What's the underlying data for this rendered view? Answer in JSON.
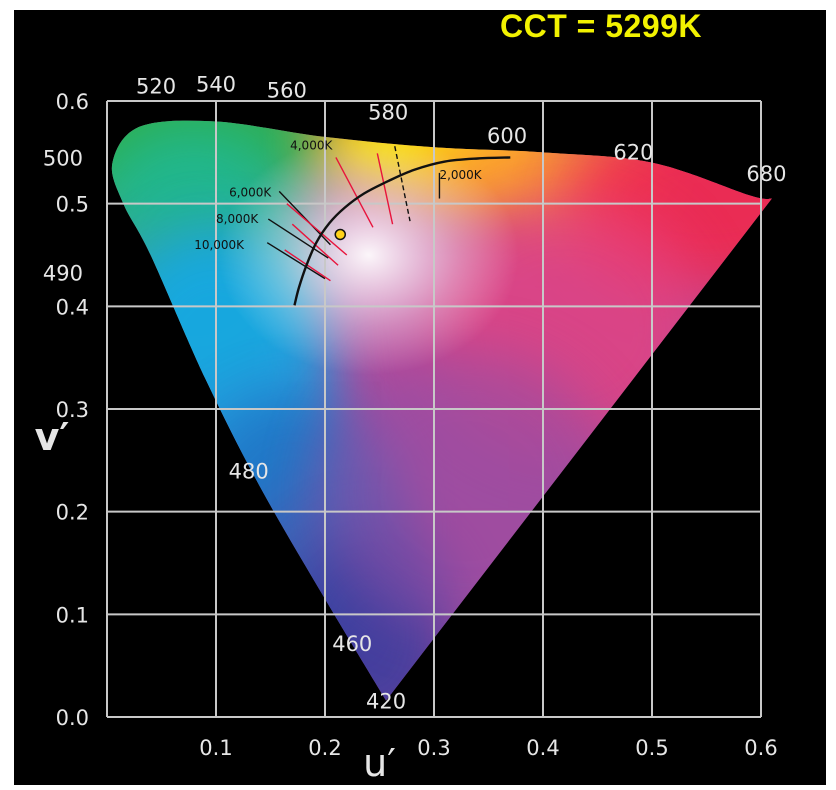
{
  "title": "CCT = 5299K",
  "colors": {
    "background": "#000000",
    "grid": "#c8c8c8",
    "title": "#f2f200",
    "axis_text": "#e6e6e6",
    "planckian_locus": "#111111",
    "marker": "#ffd21a"
  },
  "chart_data": {
    "type": "scatter",
    "title": "CCT = 5299K",
    "xlabel": "u′",
    "ylabel": "v′",
    "xlim": [
      0,
      0.6
    ],
    "ylim": [
      0,
      0.6
    ],
    "grid": true,
    "x_ticks": [
      {
        "v": 0.1,
        "label": "0.1"
      },
      {
        "v": 0.2,
        "label": "0.2"
      },
      {
        "v": 0.3,
        "label": "0.3"
      },
      {
        "v": 0.4,
        "label": "0.4"
      },
      {
        "v": 0.5,
        "label": "0.5"
      },
      {
        "v": 0.6,
        "label": "0.6"
      }
    ],
    "y_ticks": [
      {
        "v": 0.0,
        "label": "0.0"
      },
      {
        "v": 0.1,
        "label": "0.1"
      },
      {
        "v": 0.2,
        "label": "0.2"
      },
      {
        "v": 0.3,
        "label": "0.3"
      },
      {
        "v": 0.4,
        "label": "0.4"
      },
      {
        "v": 0.5,
        "label": "0.5"
      },
      {
        "v": 0.6,
        "label": "0.6"
      }
    ],
    "spectral_locus": [
      [
        0.256,
        0.016
      ],
      [
        0.2,
        0.115
      ],
      [
        0.14,
        0.225
      ],
      [
        0.09,
        0.33
      ],
      [
        0.04,
        0.45
      ],
      [
        0.015,
        0.5
      ],
      [
        0.005,
        0.54
      ],
      [
        0.03,
        0.575
      ],
      [
        0.1,
        0.58
      ],
      [
        0.2,
        0.565
      ],
      [
        0.3,
        0.555
      ],
      [
        0.4,
        0.55
      ],
      [
        0.5,
        0.54
      ],
      [
        0.59,
        0.508
      ],
      [
        0.61,
        0.505
      ]
    ],
    "wavelength_labels": [
      {
        "label": "420",
        "u": 0.256,
        "v": 0.016
      },
      {
        "label": "460",
        "u": 0.225,
        "v": 0.072
      },
      {
        "label": "480",
        "u": 0.13,
        "v": 0.24
      },
      {
        "label": "490",
        "u": 0.0,
        "v": 0.433
      },
      {
        "label": "500",
        "u": 0.0,
        "v": 0.545
      },
      {
        "label": "520",
        "u": 0.045,
        "v": 0.615
      },
      {
        "label": "540",
        "u": 0.1,
        "v": 0.617
      },
      {
        "label": "560",
        "u": 0.165,
        "v": 0.611
      },
      {
        "label": "580",
        "u": 0.258,
        "v": 0.59
      },
      {
        "label": "600",
        "u": 0.367,
        "v": 0.567
      },
      {
        "label": "620",
        "u": 0.483,
        "v": 0.551
      },
      {
        "label": "680",
        "u": 0.605,
        "v": 0.53
      }
    ],
    "planckian_locus": [
      [
        0.172,
        0.401
      ],
      [
        0.176,
        0.418
      ],
      [
        0.183,
        0.44
      ],
      [
        0.192,
        0.462
      ],
      [
        0.204,
        0.481
      ],
      [
        0.218,
        0.496
      ],
      [
        0.236,
        0.51
      ],
      [
        0.258,
        0.522
      ],
      [
        0.282,
        0.533
      ],
      [
        0.31,
        0.541
      ],
      [
        0.34,
        0.544
      ],
      [
        0.37,
        0.545
      ]
    ],
    "isotherms": [
      {
        "label": "2,000K",
        "u": 0.305,
        "v": 0.524,
        "x1": 0.305,
        "y1": 0.53,
        "x2": 0.305,
        "y2": 0.505,
        "color": "#111111"
      },
      {
        "label": "4,000K",
        "u": 0.168,
        "v": 0.553,
        "x1": 0.21,
        "y1": 0.545,
        "x2": 0.244,
        "y2": 0.477,
        "color": "#e8143c"
      },
      {
        "label": "6,000K",
        "u": 0.112,
        "v": 0.507,
        "x1": 0.158,
        "y1": 0.512,
        "x2": 0.205,
        "y2": 0.46,
        "color": "#111111"
      },
      {
        "label": "8,000K",
        "u": 0.1,
        "v": 0.481,
        "x1": 0.148,
        "y1": 0.485,
        "x2": 0.203,
        "y2": 0.447,
        "color": "#111111"
      },
      {
        "label": "10,000K",
        "u": 0.08,
        "v": 0.456,
        "x1": 0.147,
        "y1": 0.462,
        "x2": 0.2,
        "y2": 0.427,
        "color": "#111111"
      }
    ],
    "isotherm_extra_lines": [
      {
        "x1": 0.248,
        "y1": 0.549,
        "x2": 0.262,
        "y2": 0.48,
        "color": "#e8143c",
        "dash": false
      },
      {
        "x1": 0.264,
        "y1": 0.556,
        "x2": 0.278,
        "y2": 0.483,
        "color": "#111111",
        "dash": true
      },
      {
        "x1": 0.165,
        "y1": 0.5,
        "x2": 0.22,
        "y2": 0.45,
        "color": "#e8143c",
        "dash": false
      },
      {
        "x1": 0.17,
        "y1": 0.48,
        "x2": 0.212,
        "y2": 0.44,
        "color": "#e8143c",
        "dash": false
      },
      {
        "x1": 0.163,
        "y1": 0.455,
        "x2": 0.205,
        "y2": 0.425,
        "color": "#e8143c",
        "dash": false
      }
    ],
    "marker": {
      "u": 0.214,
      "v": 0.47,
      "label": "CCT = 5299K"
    }
  }
}
